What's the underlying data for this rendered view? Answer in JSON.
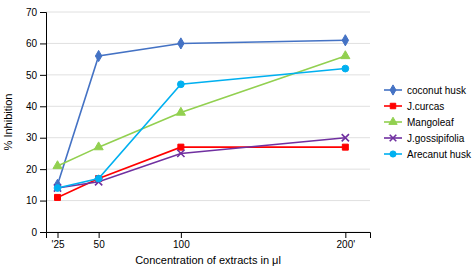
{
  "chart_data": {
    "type": "line",
    "x": [
      25,
      50,
      100,
      200
    ],
    "xlim": [
      18,
      215
    ],
    "xticks": [
      {
        "value": 25,
        "label": "'25"
      },
      50,
      100,
      {
        "value": 200,
        "label": "200'"
      }
    ],
    "ylim": [
      0,
      70
    ],
    "yticks": [
      0,
      10,
      20,
      30,
      40,
      50,
      60,
      70
    ],
    "xlabel": "Concentration of extracts in μl",
    "ylabel": "% Inhibition",
    "grid": "y",
    "legend": "right",
    "series": [
      {
        "name": "coconut husk",
        "color": "#4472C4",
        "marker": "diamond",
        "values": [
          15,
          56,
          60,
          61
        ]
      },
      {
        "name": "J.curcas",
        "color": "#FF0000",
        "marker": "square",
        "values": [
          11,
          17,
          27,
          27
        ]
      },
      {
        "name": "Mangoleaf",
        "color": "#92D050",
        "marker": "triangle",
        "values": [
          21,
          27,
          38,
          56
        ]
      },
      {
        "name": "J.gossipifolia",
        "color": "#7030A0",
        "marker": "x",
        "values": [
          14,
          16,
          25,
          30
        ]
      },
      {
        "name": "Arecanut husk",
        "color": "#00B0F0",
        "marker": "circle",
        "values": [
          14,
          17,
          47,
          52
        ]
      }
    ]
  }
}
